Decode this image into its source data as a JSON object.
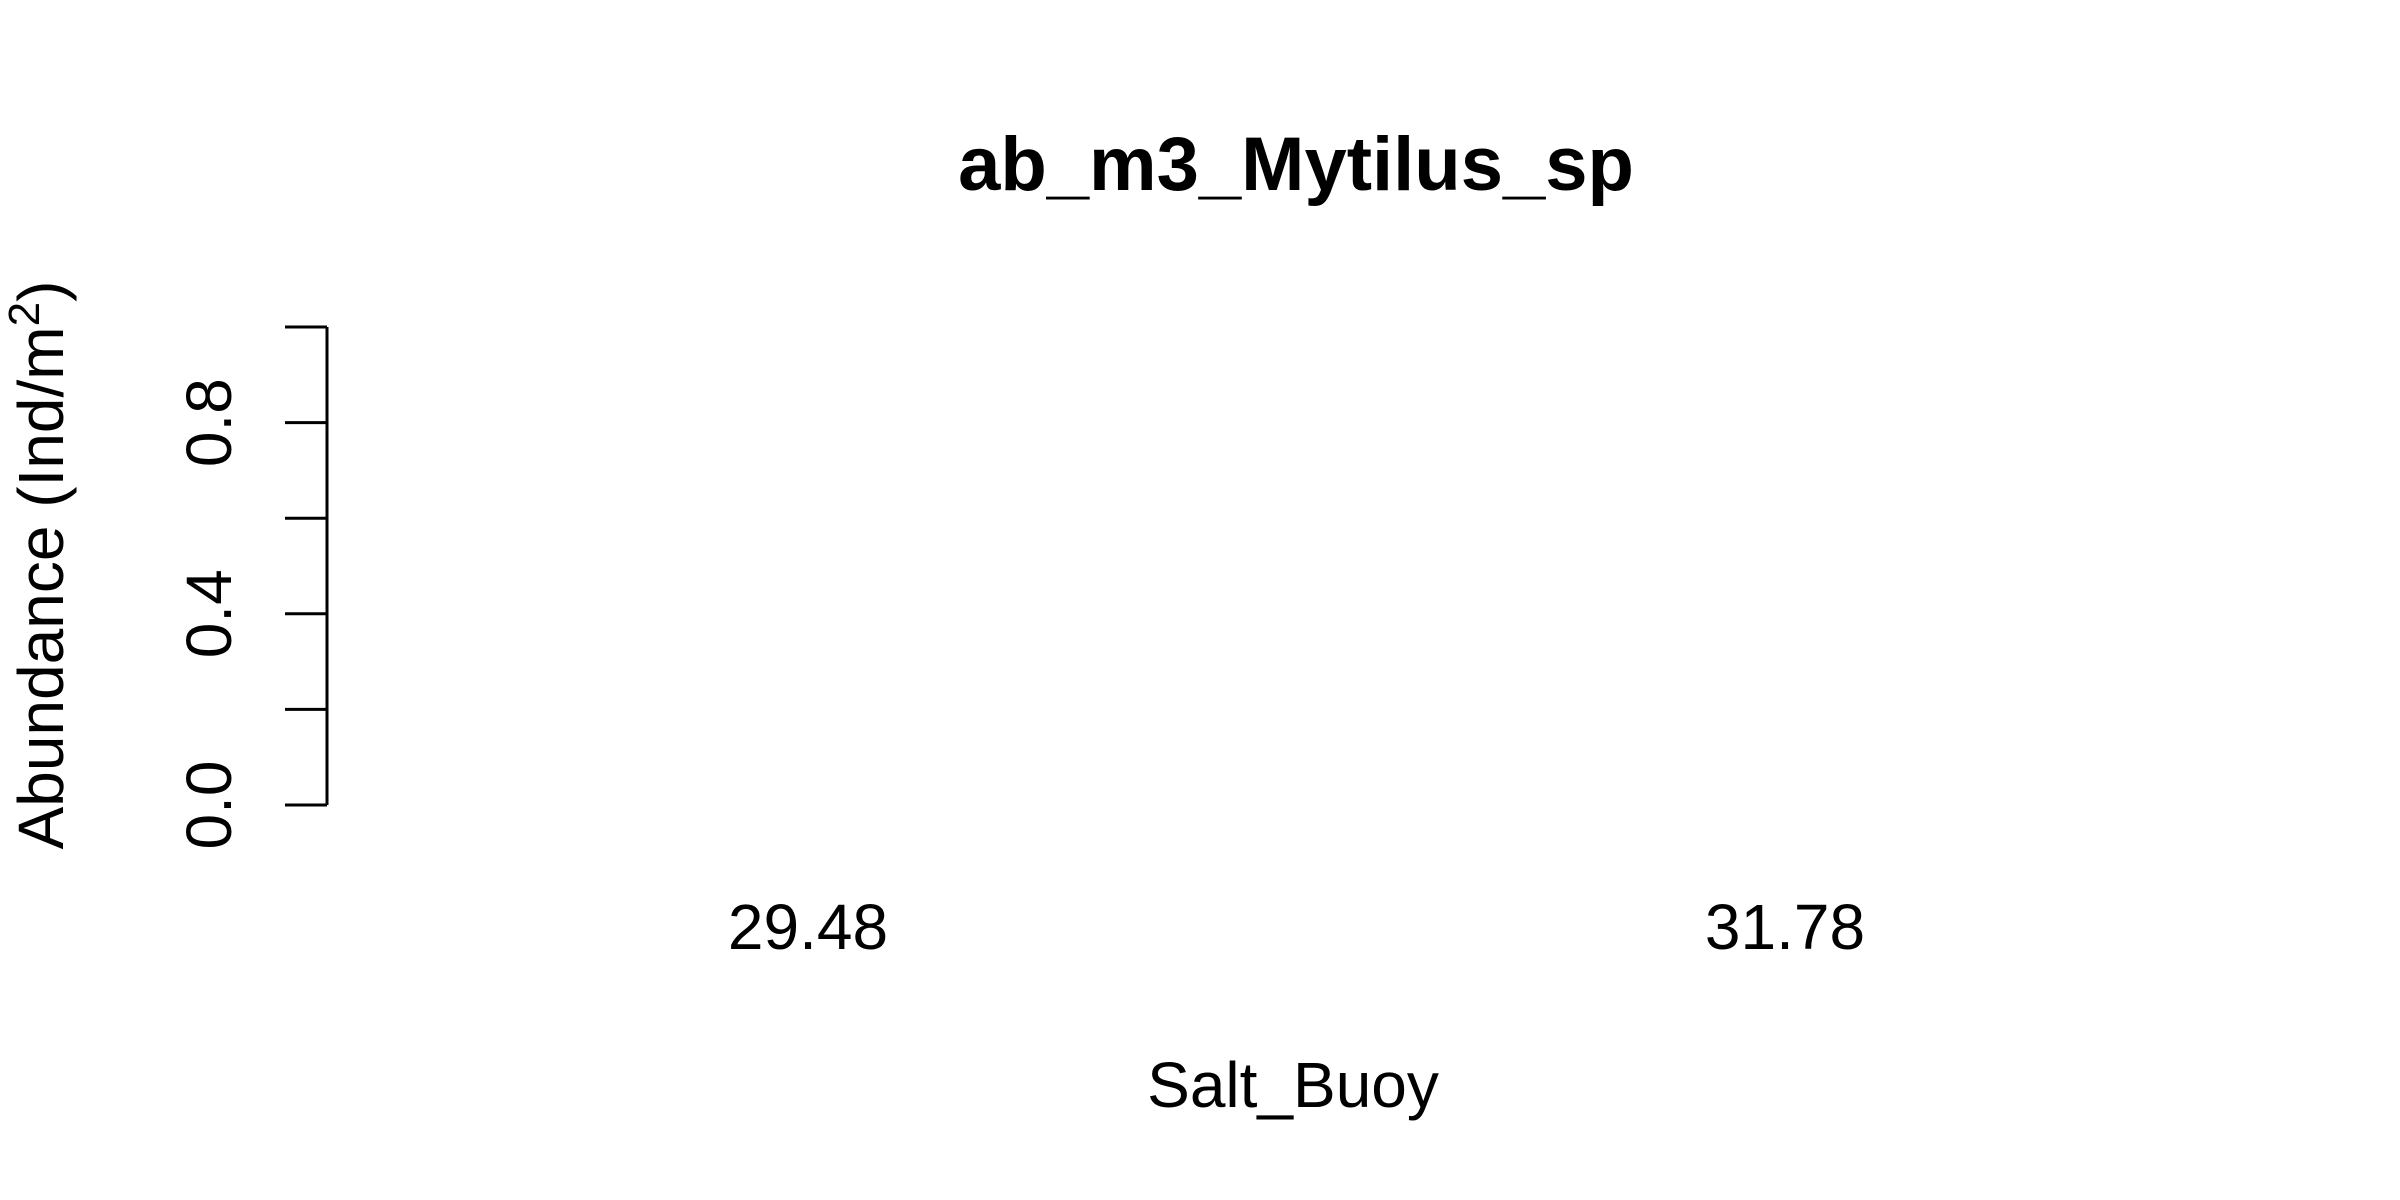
{
  "chart_data": {
    "type": "bar",
    "title": "ab_m3_Mytilus_sp",
    "xlabel": "Salt_Buoy",
    "ylabel": "Abundance (Ind/m",
    "ylabel_superscript": "2",
    "ylabel_suffix": ")",
    "categories": [
      "29.48",
      "31.78"
    ],
    "values": [
      0,
      0
    ],
    "ylim": [
      0,
      1
    ],
    "y_ticks": [
      0,
      0.2,
      0.4,
      0.6,
      0.8,
      1.0
    ],
    "y_tick_labels": [
      "0.0",
      "0.4",
      "0.8"
    ],
    "y_tick_label_values": [
      0,
      0.4,
      0.8
    ],
    "grid": false,
    "legend": "none"
  }
}
